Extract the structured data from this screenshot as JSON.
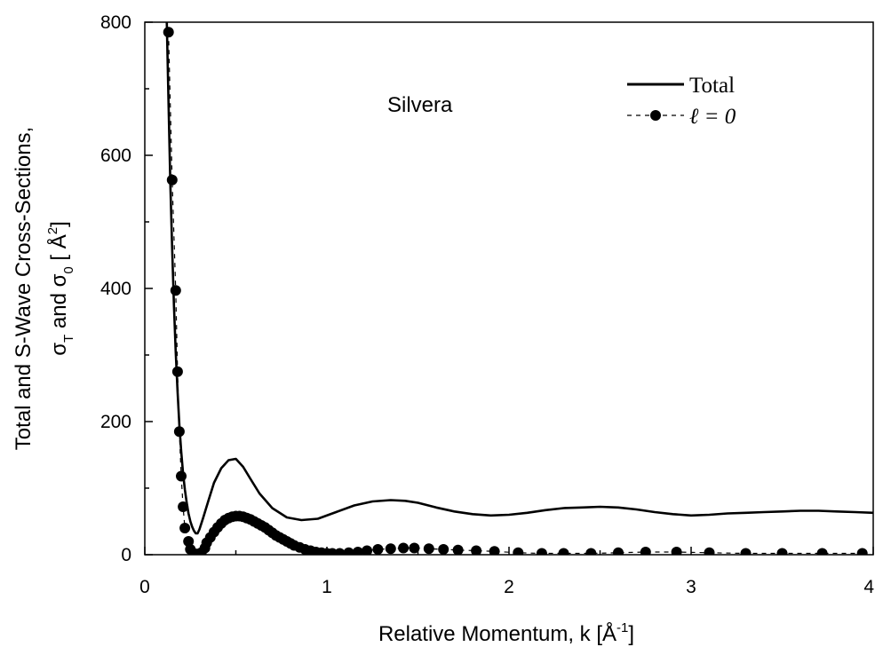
{
  "chart_data": {
    "type": "line",
    "annotation": "Silvera",
    "xlabel": "Relative Momentum, k [Å",
    "xlabel_sup": "-1",
    "xlabel_end": "]",
    "ylabel_line1": "Total and S-Wave Cross-Sections,",
    "ylabel_line2_a": "σ",
    "ylabel_line2_sub_a": "T",
    "ylabel_line2_b": " and σ",
    "ylabel_line2_sub_b": "0",
    "ylabel_line2_c": "  [ Å",
    "ylabel_line2_sup": "2",
    "ylabel_line2_d": "]",
    "xlim": [
      0,
      4
    ],
    "ylim": [
      0,
      800
    ],
    "x_ticks": [
      "0",
      "1",
      "2",
      "3",
      "4"
    ],
    "y_ticks": [
      "0",
      "200",
      "400",
      "600",
      "800"
    ],
    "legend_position": "top-right",
    "series": [
      {
        "name": "Total",
        "style": "solid",
        "x": [
          0.12,
          0.13,
          0.14,
          0.15,
          0.16,
          0.17,
          0.18,
          0.19,
          0.2,
          0.21,
          0.22,
          0.23,
          0.24,
          0.25,
          0.26,
          0.27,
          0.28,
          0.29,
          0.3,
          0.32,
          0.35,
          0.38,
          0.42,
          0.46,
          0.5,
          0.54,
          0.58,
          0.63,
          0.7,
          0.78,
          0.86,
          0.95,
          1.05,
          1.15,
          1.25,
          1.35,
          1.43,
          1.5,
          1.6,
          1.7,
          1.8,
          1.9,
          2.0,
          2.1,
          2.2,
          2.3,
          2.4,
          2.5,
          2.6,
          2.7,
          2.8,
          2.9,
          3.0,
          3.1,
          3.2,
          3.3,
          3.4,
          3.5,
          3.6,
          3.7,
          3.8,
          3.9,
          4.0
        ],
        "y": [
          810,
          680,
          560,
          460,
          375,
          305,
          245,
          195,
          155,
          122,
          98,
          78,
          62,
          50,
          42,
          36,
          32,
          32,
          38,
          55,
          82,
          108,
          130,
          142,
          144,
          132,
          114,
          92,
          70,
          56,
          52,
          54,
          64,
          74,
          80,
          82,
          81,
          78,
          71,
          65,
          61,
          59,
          60,
          63,
          67,
          70,
          71,
          72,
          71,
          68,
          64,
          61,
          59,
          60,
          62,
          63,
          64,
          65,
          66,
          66,
          65,
          64,
          63
        ]
      },
      {
        "name": "ℓ = 0",
        "style": "dashed-markers",
        "x": [
          0.13,
          0.15,
          0.17,
          0.18,
          0.19,
          0.2,
          0.21,
          0.22,
          0.24,
          0.25,
          0.27,
          0.29,
          0.31,
          0.33,
          0.34,
          0.36,
          0.38,
          0.4,
          0.42,
          0.44,
          0.46,
          0.48,
          0.5,
          0.52,
          0.54,
          0.56,
          0.58,
          0.6,
          0.62,
          0.64,
          0.66,
          0.68,
          0.7,
          0.72,
          0.74,
          0.76,
          0.78,
          0.8,
          0.82,
          0.85,
          0.88,
          0.91,
          0.94,
          0.97,
          1.0,
          1.03,
          1.07,
          1.12,
          1.17,
          1.22,
          1.28,
          1.35,
          1.42,
          1.48,
          1.56,
          1.64,
          1.72,
          1.82,
          1.92,
          2.05,
          2.18,
          2.3,
          2.45,
          2.6,
          2.75,
          2.92,
          3.1,
          3.3,
          3.5,
          3.72,
          3.94
        ],
        "y": [
          785,
          563,
          397,
          275,
          185,
          118,
          72,
          40,
          20,
          8,
          2,
          1,
          3,
          10,
          18,
          26,
          34,
          41,
          47,
          52,
          55,
          57,
          58,
          58,
          57,
          55,
          53,
          50,
          47,
          44,
          41,
          37,
          33,
          29,
          26,
          23,
          20,
          17,
          14,
          11,
          8,
          6,
          4,
          3,
          2,
          2,
          2,
          3,
          4,
          6,
          8,
          9,
          10,
          10,
          9,
          8,
          7,
          6,
          5,
          3,
          2,
          2,
          2,
          3,
          4,
          4,
          3,
          2,
          2,
          2,
          2
        ]
      }
    ]
  }
}
